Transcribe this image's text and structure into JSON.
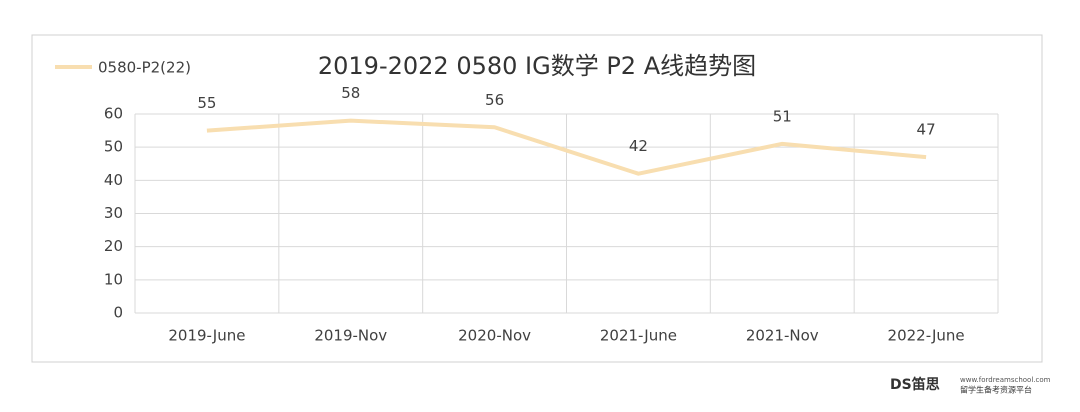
{
  "chart_data": {
    "type": "line",
    "title": "2019-2022 0580 IG数学 P2 A线趋势图",
    "categories": [
      "2019-June",
      "2019-Nov",
      "2020-Nov",
      "2021-June",
      "2021-Nov",
      "2022-June"
    ],
    "series": [
      {
        "name": "0580-P2(22)",
        "color": "#f8deb0",
        "values": [
          55,
          58,
          56,
          42,
          51,
          47
        ]
      }
    ],
    "ylim": [
      0,
      60
    ],
    "yticks": [
      0,
      10,
      20,
      30,
      40,
      50,
      60
    ],
    "grid": true,
    "legend": "top-left"
  },
  "watermark": {
    "brand": "DS笛思",
    "tagline": "留学生备考资源平台",
    "url": "www.fordreamschool.com"
  }
}
